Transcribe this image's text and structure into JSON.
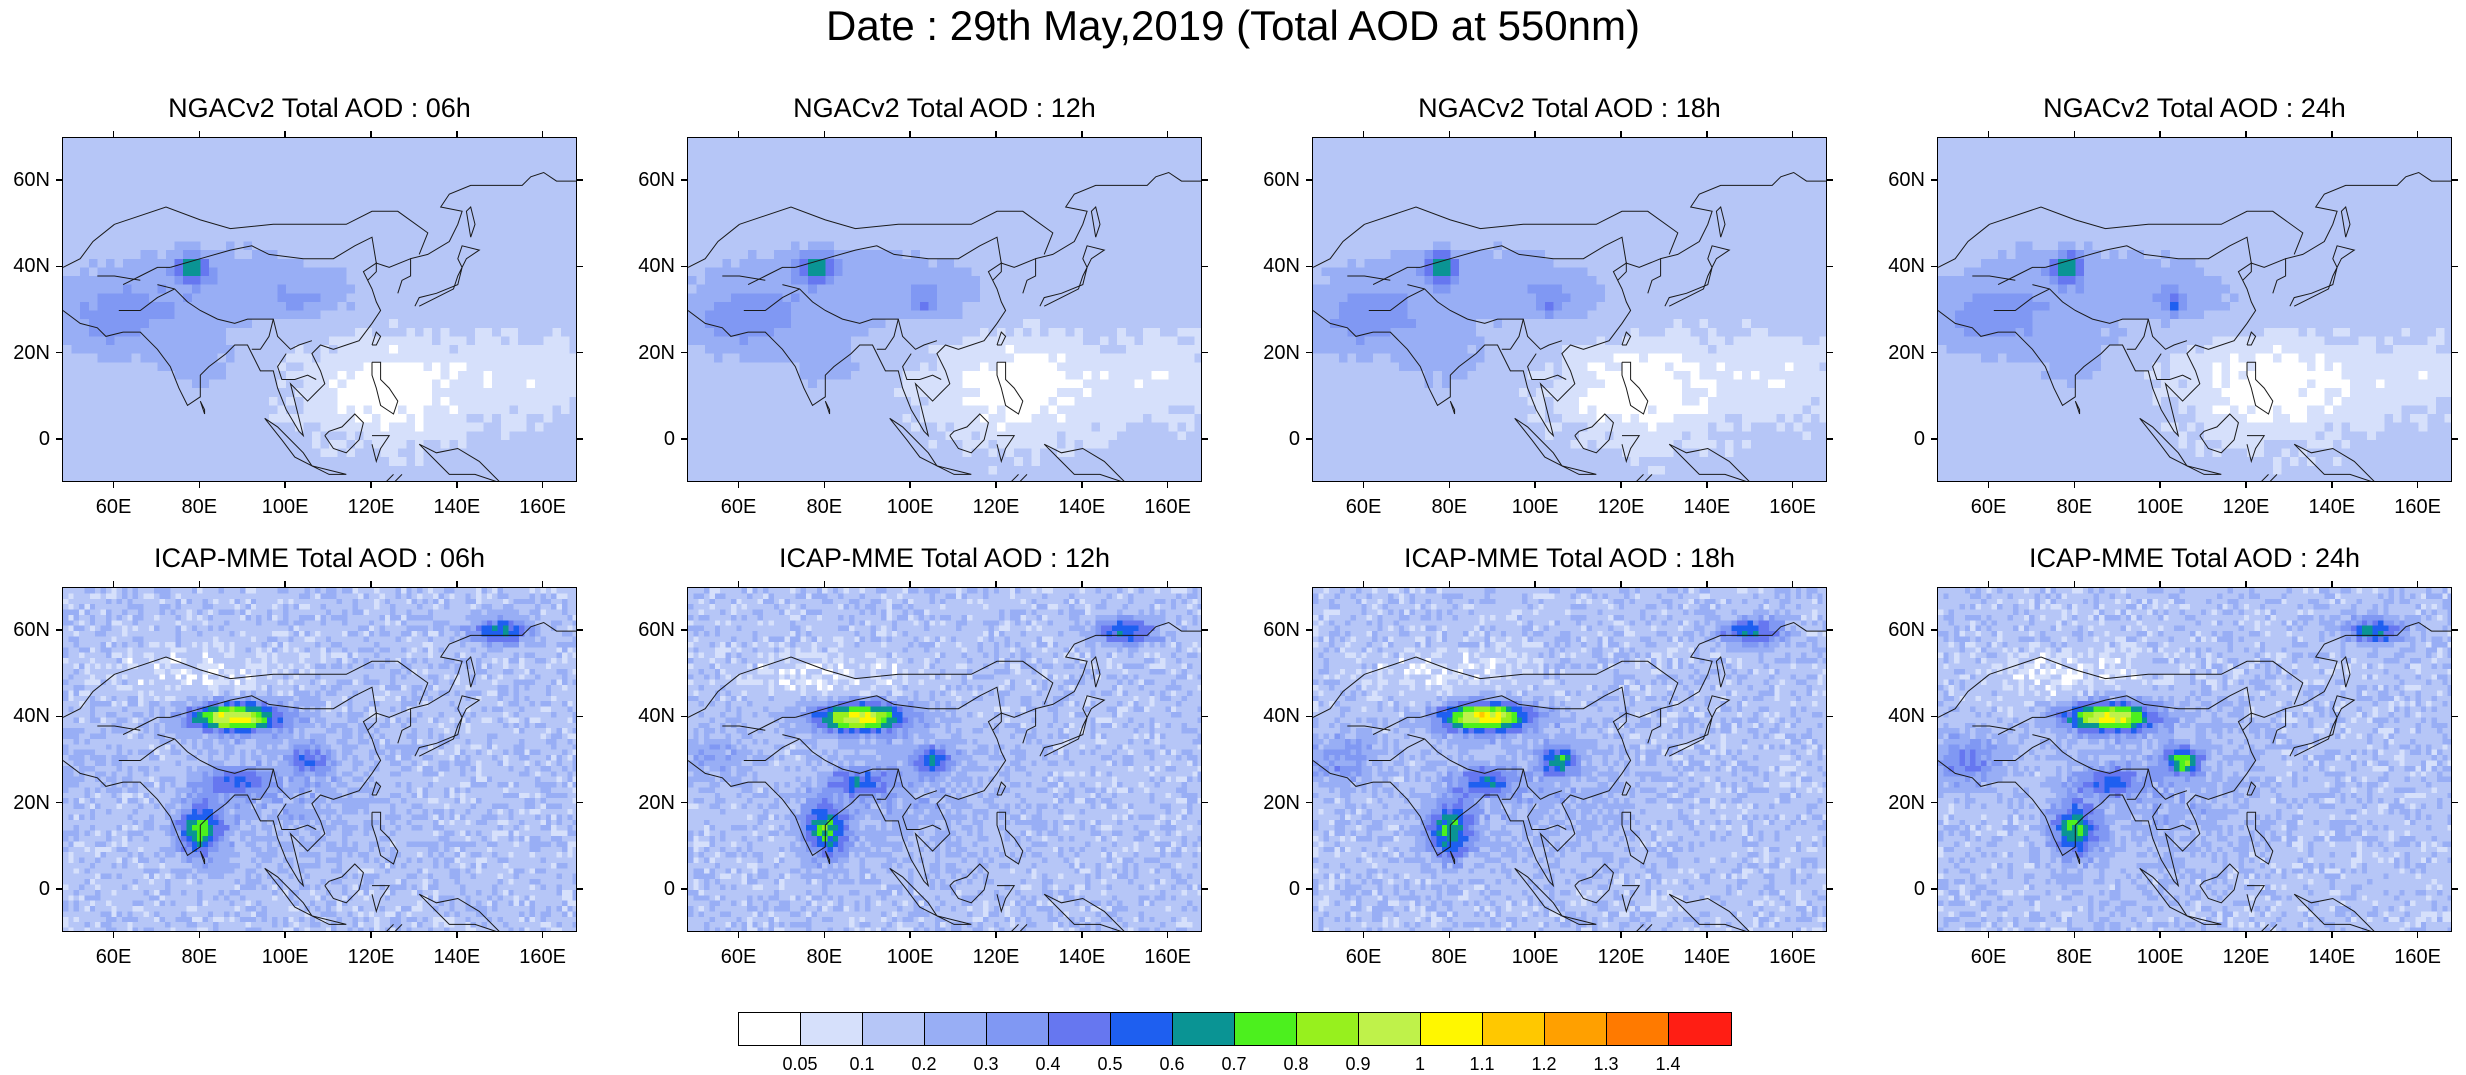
{
  "title": "Date : 29th May,2019 (Total AOD at 550nm)",
  "panels": [
    {
      "title": "NGACv2 Total AOD : 06h",
      "model": "ngac",
      "hour": 6
    },
    {
      "title": "NGACv2 Total AOD : 12h",
      "model": "ngac",
      "hour": 12
    },
    {
      "title": "NGACv2 Total AOD : 18h",
      "model": "ngac",
      "hour": 18
    },
    {
      "title": "NGACv2 Total AOD : 24h",
      "model": "ngac",
      "hour": 24
    },
    {
      "title": "ICAP-MME Total AOD : 06h",
      "model": "icap",
      "hour": 6
    },
    {
      "title": "ICAP-MME Total AOD : 12h",
      "model": "icap",
      "hour": 12
    },
    {
      "title": "ICAP-MME Total AOD : 18h",
      "model": "icap",
      "hour": 18
    },
    {
      "title": "ICAP-MME Total AOD : 24h",
      "model": "icap",
      "hour": 24
    }
  ],
  "axes": {
    "lat_range": [
      -10,
      70
    ],
    "lon_range": [
      48,
      168
    ],
    "lat_ticks": [
      {
        "value": 60,
        "label": "60N"
      },
      {
        "value": 40,
        "label": "40N"
      },
      {
        "value": 20,
        "label": "20N"
      },
      {
        "value": 0,
        "label": "0"
      }
    ],
    "lon_ticks": [
      {
        "value": 60,
        "label": "60E"
      },
      {
        "value": 80,
        "label": "80E"
      },
      {
        "value": 100,
        "label": "100E"
      },
      {
        "value": 120,
        "label": "120E"
      },
      {
        "value": 140,
        "label": "140E"
      },
      {
        "value": 160,
        "label": "160E"
      }
    ]
  },
  "colorbar": {
    "labels": [
      "0.05",
      "0.1",
      "0.2",
      "0.3",
      "0.4",
      "0.5",
      "0.6",
      "0.7",
      "0.8",
      "0.9",
      "1",
      "1.1",
      "1.2",
      "1.3",
      "1.4"
    ],
    "colors": [
      "#ffffff",
      "#d6e0fb",
      "#b6c6f7",
      "#98aef5",
      "#8098f3",
      "#6677f0",
      "#1e5ff0",
      "#0a9494",
      "#4cf01e",
      "#97f01e",
      "#bff24a",
      "#fff700",
      "#ffc800",
      "#ffa000",
      "#ff7a00",
      "#ff1e14"
    ]
  }
}
